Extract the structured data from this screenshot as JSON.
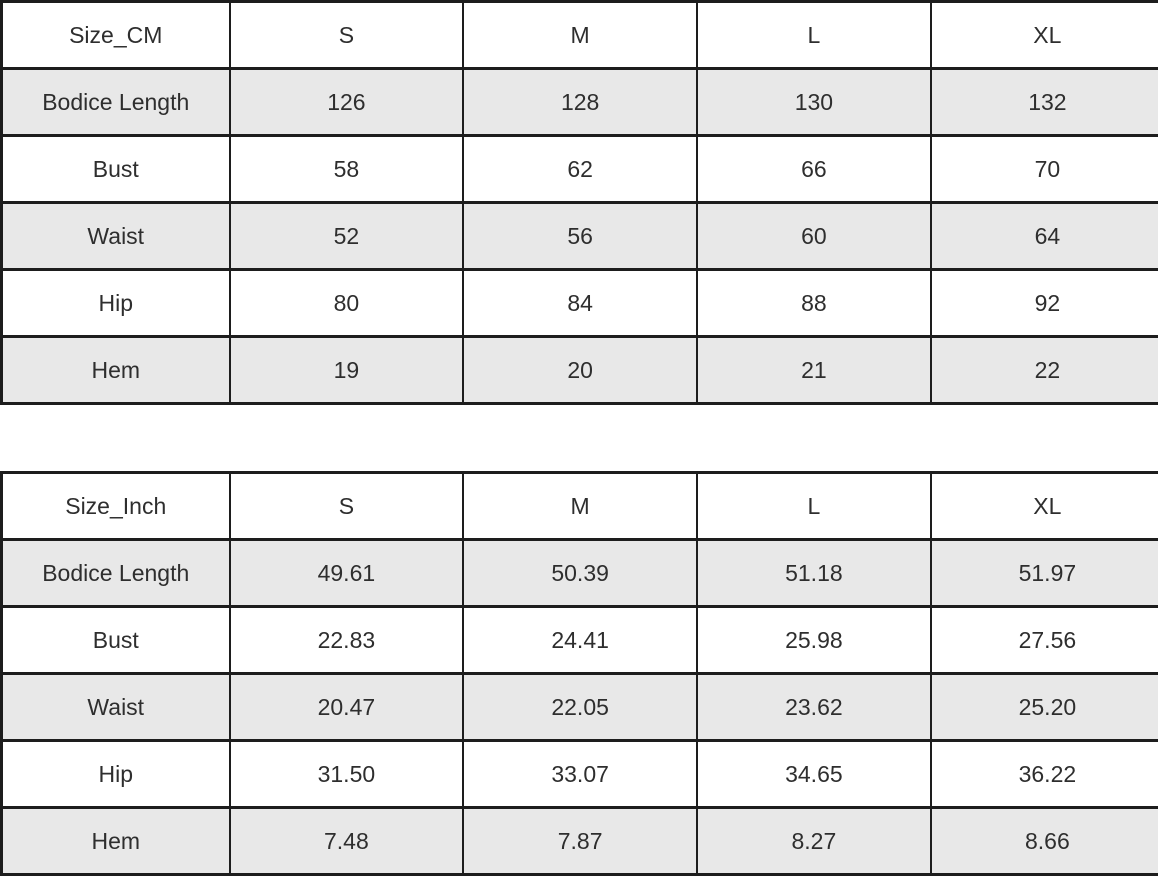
{
  "colors": {
    "background": "#ffffff",
    "row_stripe": "#e8e8e8",
    "row_plain": "#ffffff",
    "border": "#1d1d1d",
    "text": "#2e2e2e"
  },
  "chart_data": [
    {
      "type": "table",
      "title": "Size_CM",
      "columns": [
        "Size_CM",
        "S",
        "M",
        "L",
        "XL"
      ],
      "rows": [
        [
          "Bodice Length",
          "126",
          "128",
          "130",
          "132"
        ],
        [
          "Bust",
          "58",
          "62",
          "66",
          "70"
        ],
        [
          "Waist",
          "52",
          "56",
          "60",
          "64"
        ],
        [
          "Hip",
          "80",
          "84",
          "88",
          "92"
        ],
        [
          "Hem",
          "19",
          "20",
          "21",
          "22"
        ]
      ],
      "layout_hints": {
        "striped_rows": "odd data rows shaded light gray",
        "alignment": "all cells centered",
        "grid": "on"
      }
    },
    {
      "type": "table",
      "title": "Size_Inch",
      "columns": [
        "Size_Inch",
        "S",
        "M",
        "L",
        "XL"
      ],
      "rows": [
        [
          "Bodice Length",
          "49.61",
          "50.39",
          "51.18",
          "51.97"
        ],
        [
          "Bust",
          "22.83",
          "24.41",
          "25.98",
          "27.56"
        ],
        [
          "Waist",
          "20.47",
          "22.05",
          "23.62",
          "25.20"
        ],
        [
          "Hip",
          "31.50",
          "33.07",
          "34.65",
          "36.22"
        ],
        [
          "Hem",
          "7.48",
          "7.87",
          "8.27",
          "8.66"
        ]
      ],
      "layout_hints": {
        "striped_rows": "odd data rows shaded light gray",
        "alignment": "all cells centered",
        "grid": "on"
      }
    }
  ]
}
